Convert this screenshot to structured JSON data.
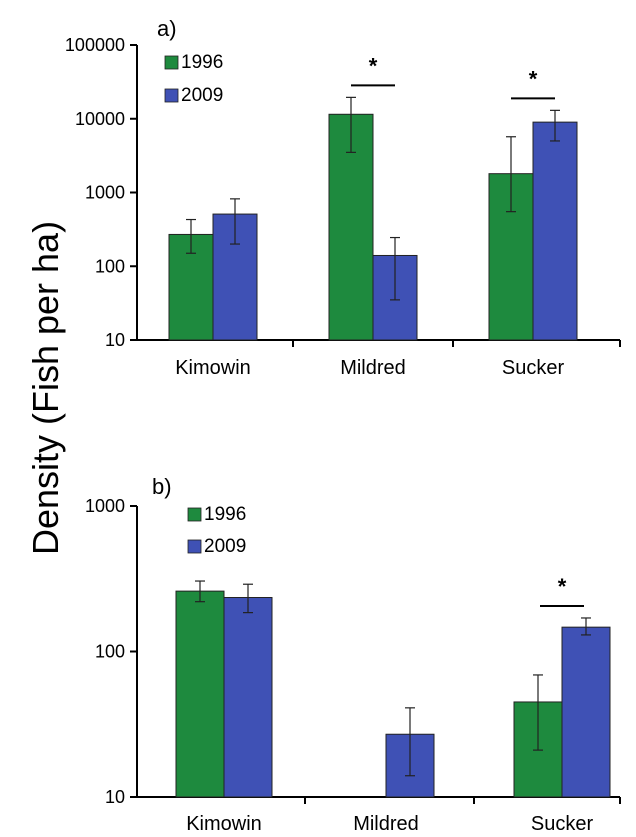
{
  "y_axis_label": "Density (Fish per ha)",
  "colors": {
    "1996": "#1e8a3e",
    "2009": "#3f51b5"
  },
  "chart_data": [
    {
      "type": "bar",
      "panel_label": "a)",
      "scale": "log",
      "ylim": [
        10,
        100000
      ],
      "yticks": [
        10,
        100,
        1000,
        10000,
        100000
      ],
      "ytick_labels": [
        "10",
        "100",
        "1000",
        "10000",
        "100000"
      ],
      "categories": [
        "Kimowin",
        "Mildred",
        "Sucker"
      ],
      "legend": [
        "1996",
        "2009"
      ],
      "legend_position": "top-left",
      "series": [
        {
          "name": "1996",
          "values": [
            270,
            11500,
            1800
          ],
          "err_low": [
            150,
            3500,
            550
          ],
          "err_high": [
            430,
            19500,
            5700
          ]
        },
        {
          "name": "2009",
          "values": [
            510,
            140,
            9000
          ],
          "err_low": [
            200,
            35,
            5000
          ],
          "err_high": [
            820,
            245,
            13000
          ]
        }
      ],
      "significance": [
        {
          "category_index": 1,
          "label": "*"
        },
        {
          "category_index": 2,
          "label": "*"
        }
      ]
    },
    {
      "type": "bar",
      "panel_label": "b)",
      "scale": "log",
      "ylim": [
        10,
        1000
      ],
      "yticks": [
        10,
        100,
        1000
      ],
      "ytick_labels": [
        "10",
        "100",
        "1000"
      ],
      "categories": [
        "Kimowin",
        "Mildred",
        "Sucker"
      ],
      "legend": [
        "1996",
        "2009"
      ],
      "legend_position": "top-left",
      "series": [
        {
          "name": "1996",
          "values": [
            260,
            null,
            45
          ],
          "err_low": [
            220,
            null,
            21
          ],
          "err_high": [
            305,
            null,
            69
          ]
        },
        {
          "name": "2009",
          "values": [
            235,
            27,
            147
          ],
          "err_low": [
            185,
            14,
            130
          ],
          "err_high": [
            290,
            41,
            170
          ]
        }
      ],
      "significance": [
        {
          "category_index": 2,
          "label": "*"
        }
      ]
    }
  ]
}
